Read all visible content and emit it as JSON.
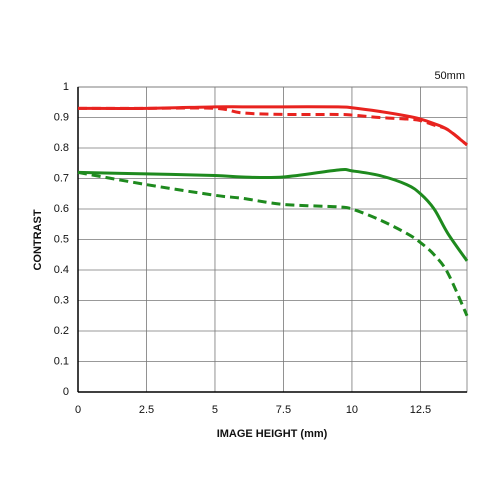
{
  "chart_data": {
    "type": "line",
    "title": "50mm",
    "x_label": "IMAGE HEIGHT (mm)",
    "y_label": "CONTRAST",
    "x": [
      0,
      2.5,
      5,
      6,
      7.5,
      9.5,
      10,
      11,
      12,
      12.5,
      13,
      13.5,
      14.2
    ],
    "series": [
      {
        "color": "#e8231f",
        "dashed": false,
        "values": [
          0.93,
          0.93,
          0.935,
          0.935,
          0.935,
          0.935,
          0.932,
          0.92,
          0.905,
          0.895,
          0.88,
          0.86,
          0.81
        ]
      },
      {
        "color": "#e8231f",
        "dashed": true,
        "values": [
          0.93,
          0.93,
          0.93,
          0.915,
          0.91,
          0.91,
          0.908,
          0.9,
          0.895,
          0.89,
          0.875,
          0.86,
          0.81
        ]
      },
      {
        "color": "#1e8a1e",
        "dashed": false,
        "values": [
          0.72,
          0.715,
          0.71,
          0.705,
          0.705,
          0.728,
          0.725,
          0.71,
          0.68,
          0.65,
          0.6,
          0.52,
          0.43
        ]
      },
      {
        "color": "#1e8a1e",
        "dashed": true,
        "values": [
          0.72,
          0.68,
          0.645,
          0.635,
          0.615,
          0.607,
          0.6,
          0.565,
          0.52,
          0.49,
          0.45,
          0.39,
          0.25
        ]
      }
    ],
    "xlim": [
      0,
      14.2
    ],
    "ylim": [
      0,
      1
    ],
    "xticks": [
      0,
      2.5,
      5,
      7.5,
      10,
      12.5
    ],
    "yticks": [
      0,
      0.1,
      0.2,
      0.3,
      0.4,
      0.5,
      0.6,
      0.7,
      0.8,
      0.9,
      1
    ],
    "grid": true
  }
}
